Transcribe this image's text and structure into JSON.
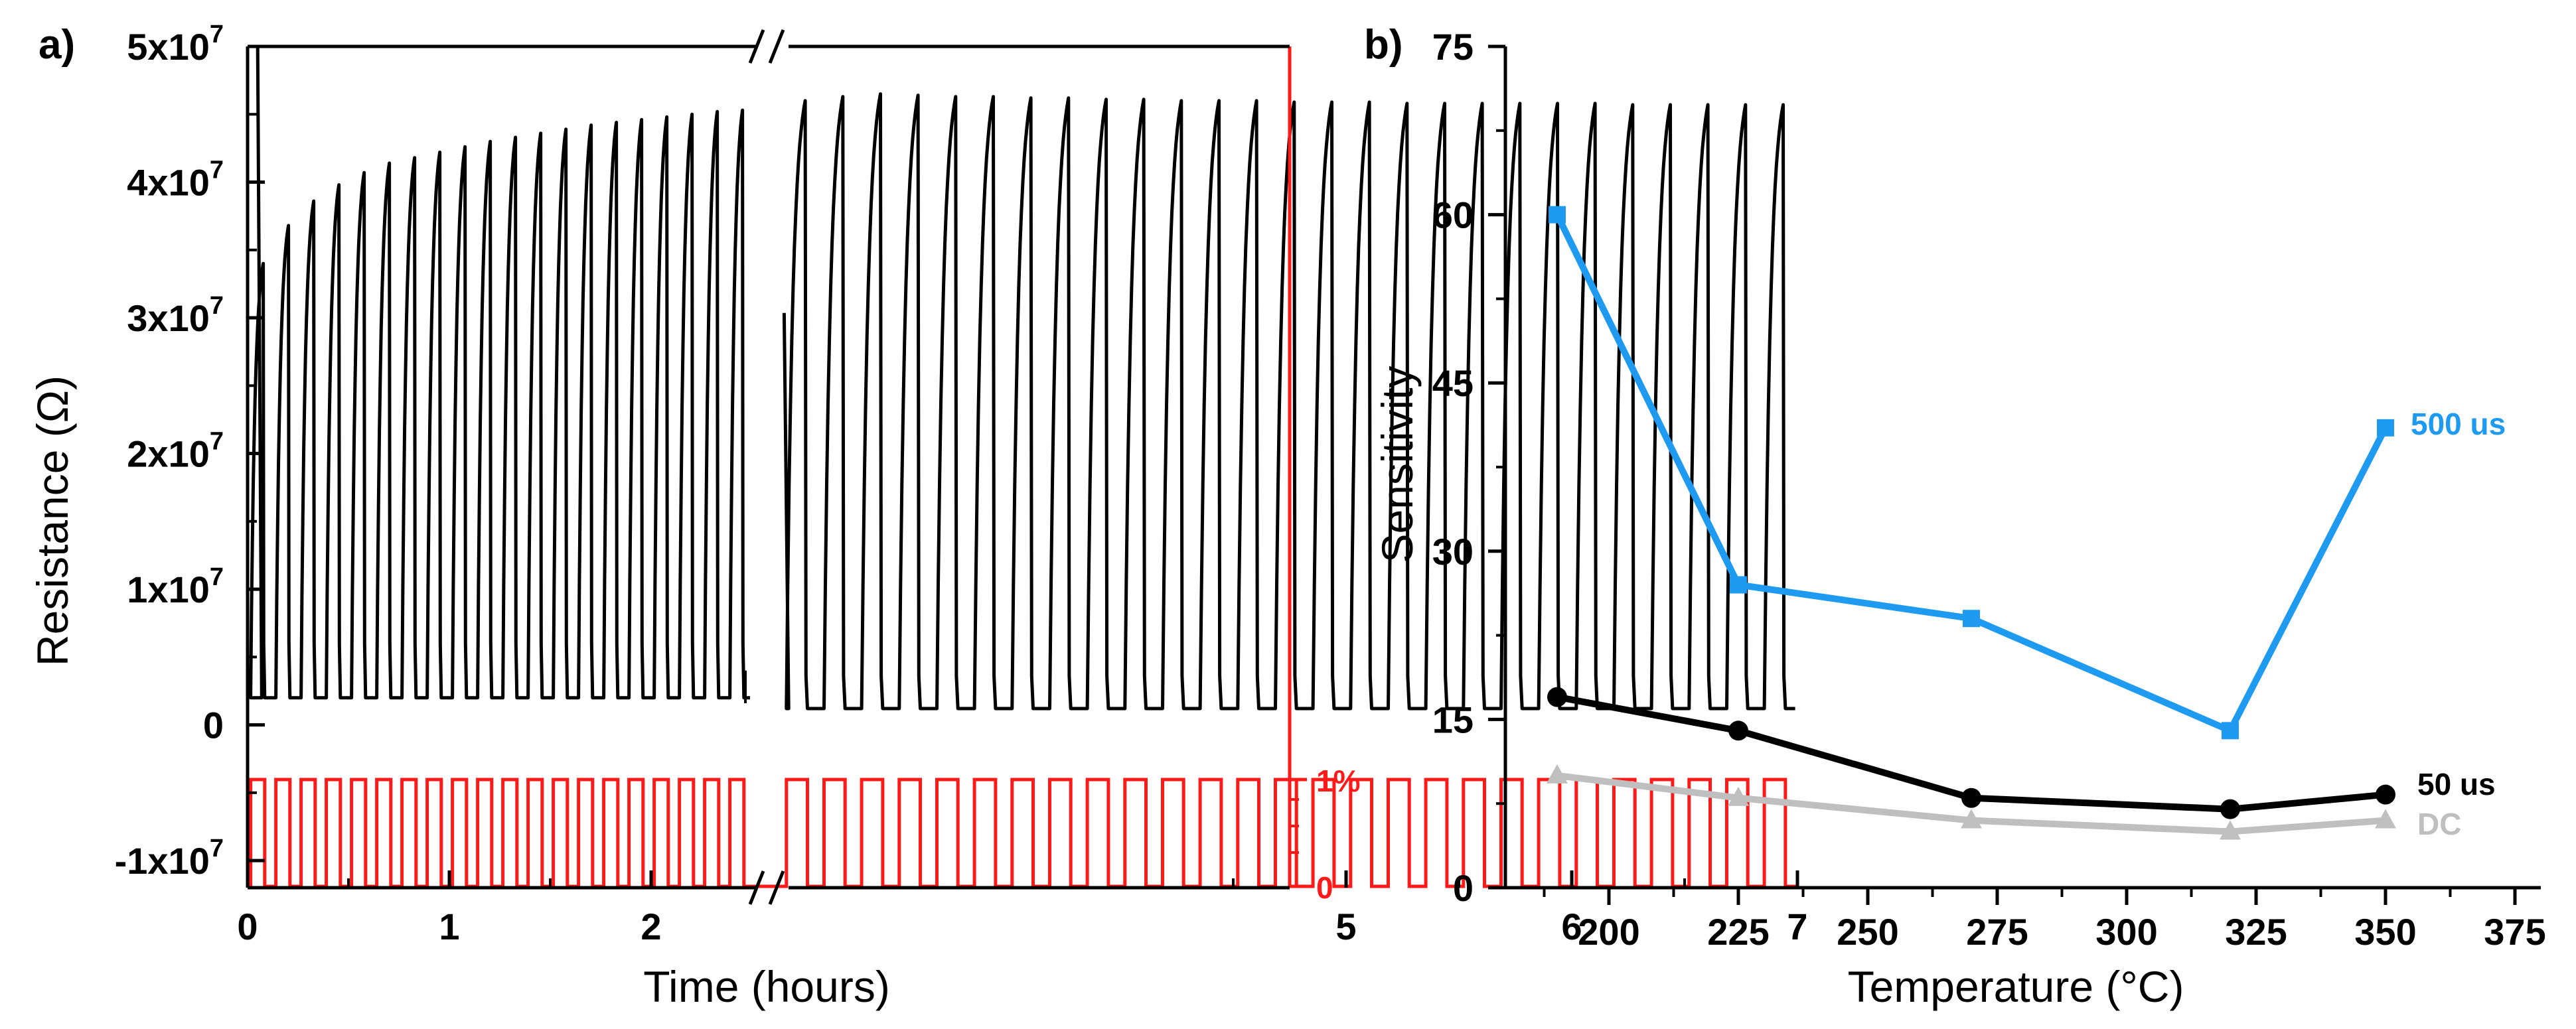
{
  "panels": {
    "a": {
      "label": "a)"
    },
    "b": {
      "label": "b)"
    }
  },
  "colors": {
    "black": "#000000",
    "red": "#ff1a1a",
    "blue": "#1e9bf0",
    "gray": "#bfbfbf"
  },
  "chart_data": [
    {
      "type": "line",
      "panel": "a",
      "title": "",
      "xlabel": "Time (hours)",
      "ylabel": "Resistance (Ω)",
      "xlim": [
        0,
        7
      ],
      "ylim": [
        -12000000,
        50000000
      ],
      "x_ticks": [
        "0",
        "1",
        "2",
        "5",
        "6",
        "7"
      ],
      "y_ticks": [
        {
          "base": "-1x10",
          "exp": "7"
        },
        {
          "base": "0",
          "exp": ""
        },
        {
          "base": "1x10",
          "exp": "7"
        },
        {
          "base": "2x10",
          "exp": "7"
        },
        {
          "base": "3x10",
          "exp": "7"
        },
        {
          "base": "4x10",
          "exp": "7"
        },
        {
          "base": "5x10",
          "exp": "7"
        }
      ],
      "right_axis_ticks": [
        "1%",
        "0"
      ],
      "axis_break": "//",
      "series": [
        {
          "color": "#000000",
          "segment1": {
            "x_start": 0.0,
            "x_end": 2.5,
            "cycles": 20,
            "base": 2000000,
            "peaks": [
              34000000,
              36800000,
              38600000,
              39800000,
              40700000,
              41400000,
              41800000,
              42200000,
              42600000,
              43000000,
              43300000,
              43600000,
              43900000,
              44200000,
              44400000,
              44600000,
              44800000,
              45000000,
              45200000,
              45300000
            ]
          },
          "segment2": {
            "x_start": 2.5,
            "x_end": 7.0,
            "cycles": 27,
            "base": 1200000,
            "peaks": [
              46000000,
              46300000,
              46500000,
              46400000,
              46300000,
              46300000,
              46200000,
              46200000,
              46100000,
              46100000,
              46000000,
              46000000,
              46000000,
              45900000,
              45900000,
              45900000,
              45800000,
              45800000,
              45800000,
              45800000,
              45800000,
              45800000,
              45700000,
              45700000,
              45700000,
              45700000,
              45700000
            ]
          }
        },
        {
          "color": "#ff1a1a",
          "type": "pulse",
          "low_percent": 0,
          "high_percent": 1
        }
      ]
    },
    {
      "type": "line",
      "panel": "b",
      "title": "",
      "xlabel": "Temperature (°C)",
      "ylabel": "Sensitivity",
      "xlim": [
        180,
        380
      ],
      "ylim": [
        0,
        75
      ],
      "x_ticks": [
        "200",
        "225",
        "250",
        "275",
        "300",
        "325",
        "350",
        "375"
      ],
      "y_ticks": [
        "0",
        "15",
        "30",
        "45",
        "60",
        "75"
      ],
      "series": [
        {
          "name": "500 us",
          "color": "#1e9bf0",
          "marker": "square",
          "x": [
            190,
            225,
            270,
            320,
            350
          ],
          "values": [
            60,
            27,
            24,
            14,
            41
          ]
        },
        {
          "name": "50 us",
          "color": "#000000",
          "marker": "circle",
          "x": [
            190,
            225,
            270,
            320,
            350
          ],
          "values": [
            17,
            14,
            8,
            7,
            8.3
          ]
        },
        {
          "name": "DC",
          "color": "#bfbfbf",
          "marker": "triangle",
          "x": [
            190,
            225,
            270,
            320,
            350
          ],
          "values": [
            10,
            8,
            6,
            5,
            6
          ]
        }
      ]
    }
  ]
}
